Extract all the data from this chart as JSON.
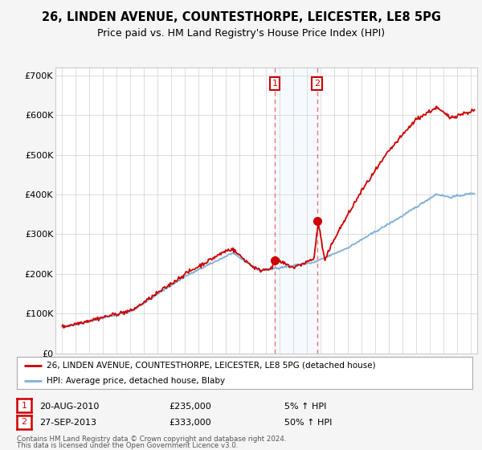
{
  "title": "26, LINDEN AVENUE, COUNTESTHORPE, LEICESTER, LE8 5PG",
  "subtitle": "Price paid vs. HM Land Registry's House Price Index (HPI)",
  "title_fontsize": 10.5,
  "subtitle_fontsize": 9,
  "background_color": "#f5f5f5",
  "plot_background": "#ffffff",
  "red_line_color": "#cc0000",
  "dashed_line_color": "#e87878",
  "blue_line_color": "#7fb0d8",
  "shaded_color": "#ddeeff",
  "purchase1": {
    "date": 2010.62,
    "price": 235000,
    "label": "1",
    "pct": "5%"
  },
  "purchase2": {
    "date": 2013.74,
    "price": 333000,
    "label": "2",
    "pct": "50%"
  },
  "ylim": [
    0,
    720000
  ],
  "yticks": [
    0,
    100000,
    200000,
    300000,
    400000,
    500000,
    600000,
    700000
  ],
  "ytick_labels": [
    "£0",
    "£100K",
    "£200K",
    "£300K",
    "£400K",
    "£500K",
    "£600K",
    "£700K"
  ],
  "xlim_start": 1994.5,
  "xlim_end": 2025.5,
  "legend_entries": [
    "26, LINDEN AVENUE, COUNTESTHORPE, LEICESTER, LE8 5PG (detached house)",
    "HPI: Average price, detached house, Blaby"
  ],
  "footer1": "Contains HM Land Registry data © Crown copyright and database right 2024.",
  "footer2": "This data is licensed under the Open Government Licence v3.0.",
  "annotation1_date": "20-AUG-2010",
  "annotation1_price": "£235,000",
  "annotation1_pct": "5% ↑ HPI",
  "annotation2_date": "27-SEP-2013",
  "annotation2_price": "£333,000",
  "annotation2_pct": "50% ↑ HPI"
}
